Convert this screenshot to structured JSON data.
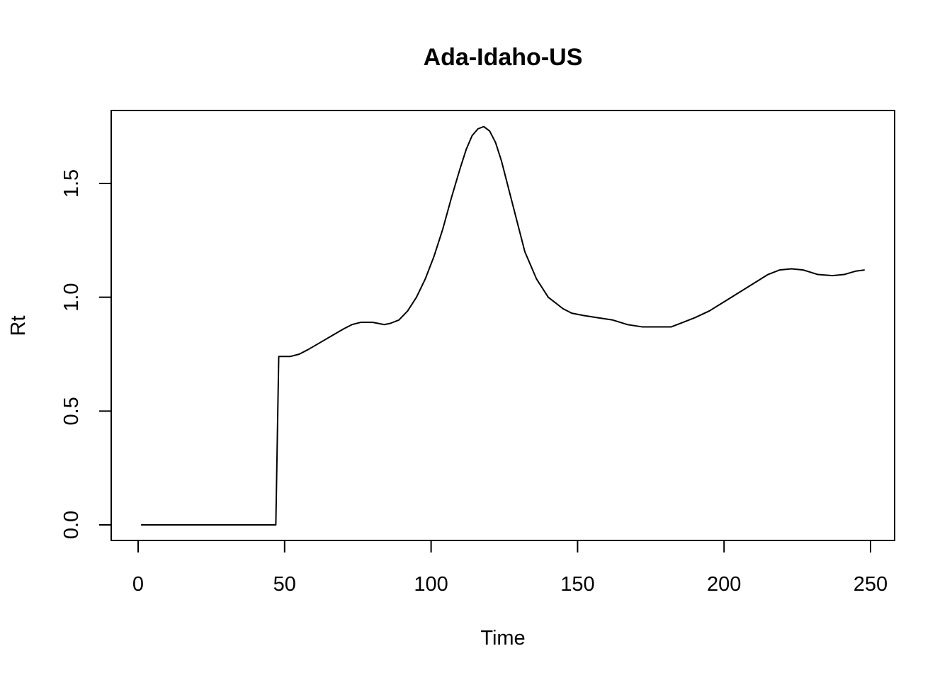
{
  "chart_data": {
    "type": "line",
    "title": "Ada-Idaho-US",
    "xlabel": "Time",
    "ylabel": "Rt",
    "xlim": [
      0,
      250
    ],
    "ylim": [
      0.0,
      1.75
    ],
    "x_ticks": [
      0,
      50,
      100,
      150,
      200,
      250
    ],
    "x_tick_labels": [
      "0",
      "50",
      "100",
      "150",
      "200",
      "250"
    ],
    "y_ticks": [
      0.0,
      0.5,
      1.0,
      1.5
    ],
    "y_tick_labels": [
      "0.0",
      "0.5",
      "1.0",
      "1.5"
    ],
    "grid": false,
    "line_color": "#000000",
    "series": [
      {
        "x": [
          1,
          10,
          20,
          30,
          40,
          47,
          48,
          50,
          52,
          55,
          58,
          62,
          66,
          70,
          73,
          76,
          80,
          84,
          86,
          89,
          92,
          95,
          98,
          101,
          104,
          107,
          110,
          112,
          114,
          116,
          118,
          120,
          122,
          124,
          126,
          128,
          130,
          132,
          134,
          136,
          138,
          140,
          142,
          145,
          148,
          152,
          157,
          162,
          167,
          172,
          177,
          182,
          186,
          190,
          195,
          200,
          205,
          210,
          215,
          219,
          223,
          227,
          232,
          237,
          241,
          245,
          248
        ],
        "y": [
          0.0,
          0.0,
          0.0,
          0.0,
          0.0,
          0.0,
          0.74,
          0.74,
          0.74,
          0.75,
          0.77,
          0.8,
          0.83,
          0.86,
          0.88,
          0.89,
          0.89,
          0.88,
          0.885,
          0.9,
          0.94,
          1.0,
          1.08,
          1.18,
          1.3,
          1.44,
          1.57,
          1.65,
          1.71,
          1.74,
          1.75,
          1.73,
          1.68,
          1.6,
          1.5,
          1.4,
          1.3,
          1.2,
          1.14,
          1.08,
          1.04,
          1.0,
          0.98,
          0.95,
          0.93,
          0.92,
          0.91,
          0.9,
          0.88,
          0.87,
          0.87,
          0.87,
          0.89,
          0.91,
          0.94,
          0.98,
          1.02,
          1.06,
          1.1,
          1.12,
          1.125,
          1.12,
          1.1,
          1.095,
          1.1,
          1.115,
          1.12
        ]
      }
    ]
  }
}
